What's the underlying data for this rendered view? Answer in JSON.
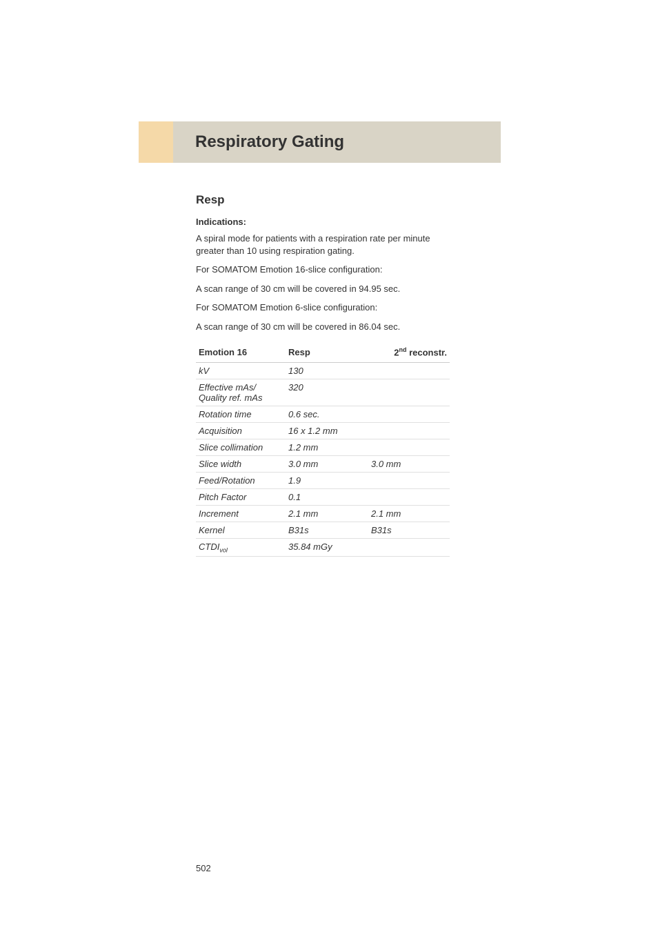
{
  "header": {
    "title": "Respiratory Gating"
  },
  "subtitle": "Resp",
  "indications_label": "Indications:",
  "paragraphs": [
    "A spiral mode for patients with a respiration rate per minute greater than 10 using respiration gating.",
    "For SOMATOM Emotion 16-slice configuration:",
    "A scan range of 30 cm will be covered in 94.95 sec.",
    "For SOMATOM Emotion 6-slice configuration:",
    "A scan range of 30 cm will be covered in 86.04 sec."
  ],
  "table": {
    "headers": {
      "col1": "Emotion 16",
      "col2": "Resp",
      "col3_prefix": "2",
      "col3_sup": "nd",
      "col3_suffix": " reconstr."
    },
    "rows": [
      {
        "param": "kV",
        "val1": "130",
        "val2": ""
      },
      {
        "param": "Effective mAs/ Quality ref. mAs",
        "val1": "320",
        "val2": ""
      },
      {
        "param": "Rotation time",
        "val1": "0.6 sec.",
        "val2": ""
      },
      {
        "param": "Acquisition",
        "val1": "16 x 1.2 mm",
        "val2": ""
      },
      {
        "param": "Slice collimation",
        "val1": "1.2 mm",
        "val2": ""
      },
      {
        "param": "Slice width",
        "val1": "3.0 mm",
        "val2": "3.0 mm"
      },
      {
        "param": "Feed/Rotation",
        "val1": "1.9",
        "val2": ""
      },
      {
        "param": "Pitch Factor",
        "val1": "0.1",
        "val2": ""
      },
      {
        "param": "Increment",
        "val1": "2.1 mm",
        "val2": "2.1 mm"
      },
      {
        "param": "Kernel",
        "val1": "B31s",
        "val2": "B31s"
      }
    ],
    "ctdi_row": {
      "param_prefix": "CTDI",
      "param_sub": "vol",
      "val1": "35.84 mGy",
      "val2": ""
    }
  },
  "page_number": "502",
  "colors": {
    "header_accent": "#f5d9a8",
    "header_bg": "#d9d4c6",
    "text": "#333333",
    "border": "#cccccc",
    "row_border": "#e0e0e0"
  }
}
